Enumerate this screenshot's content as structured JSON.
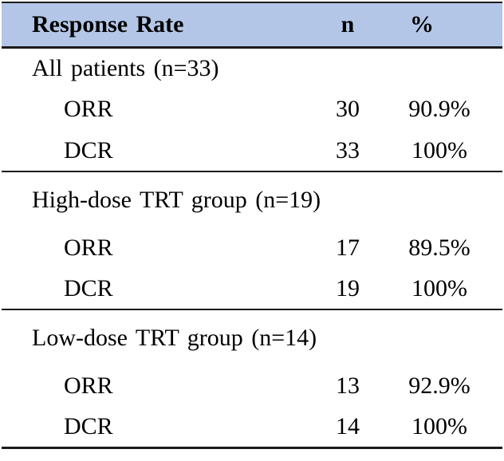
{
  "table": {
    "header": {
      "response_rate": "Response Rate",
      "n": "n",
      "percent": "%"
    },
    "sections": [
      {
        "title": "All patients (n=33)",
        "rows": [
          {
            "label": "ORR",
            "n": "30",
            "pct": "90.9%"
          },
          {
            "label": "DCR",
            "n": "33",
            "pct": "100%"
          }
        ]
      },
      {
        "title": "High-dose TRT group (n=19)",
        "rows": [
          {
            "label": "ORR",
            "n": "17",
            "pct": "89.5%"
          },
          {
            "label": "DCR",
            "n": "19",
            "pct": "100%"
          }
        ]
      },
      {
        "title": "Low-dose TRT group (n=14)",
        "rows": [
          {
            "label": "ORR",
            "n": "13",
            "pct": "92.9%"
          },
          {
            "label": "DCR",
            "n": "14",
            "pct": "100%"
          }
        ]
      }
    ],
    "colors": {
      "header_bg": "#b4c6e7",
      "rule": "#1a1a1a",
      "text": "#000000"
    }
  }
}
